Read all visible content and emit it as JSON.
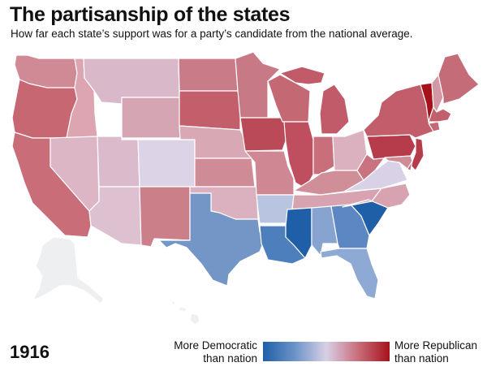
{
  "header": {
    "title": "The partisanship of the states",
    "subtitle": "How far each state’s support was for a party’s candidate from the national average."
  },
  "footer": {
    "year": "1916",
    "legend_left_line1": "More Democratic",
    "legend_left_line2": "than nation",
    "legend_right_line1": "More Republican",
    "legend_right_line2": "than nation"
  },
  "colors": {
    "strong_dem": "#1f5fa8",
    "dem": "#6b93c7",
    "neutral": "#d8d0e6",
    "rep": "#c96e7c",
    "strong_rep": "#a6121c",
    "no_data": "#eeeff1",
    "border": "#ffffff"
  },
  "states": [
    {
      "code": "WA",
      "lean": "rep",
      "fill": "#cf8a95"
    },
    {
      "code": "OR",
      "lean": "rep",
      "fill": "#c66772"
    },
    {
      "code": "CA",
      "lean": "rep",
      "fill": "#c96d78"
    },
    {
      "code": "ID",
      "lean": "rep-slight",
      "fill": "#dca5b1"
    },
    {
      "code": "NV",
      "lean": "rep-slight",
      "fill": "#dcb6c4"
    },
    {
      "code": "MT",
      "lean": "rep-slight",
      "fill": "#d9b9c9"
    },
    {
      "code": "WY",
      "lean": "rep-slight",
      "fill": "#d6a5b3"
    },
    {
      "code": "UT",
      "lean": "rep-slight",
      "fill": "#dbbacb"
    },
    {
      "code": "AZ",
      "lean": "rep-slight",
      "fill": "#ddc1d1"
    },
    {
      "code": "CO",
      "lean": "neutral",
      "fill": "#ddd3e6"
    },
    {
      "code": "NM",
      "lean": "rep",
      "fill": "#cb7f89"
    },
    {
      "code": "ND",
      "lean": "rep",
      "fill": "#c97c88"
    },
    {
      "code": "SD",
      "lean": "rep",
      "fill": "#c35e6b"
    },
    {
      "code": "NE",
      "lean": "rep-slight",
      "fill": "#d8a8b4"
    },
    {
      "code": "KS",
      "lean": "rep",
      "fill": "#cf8b96"
    },
    {
      "code": "OK",
      "lean": "rep-slight",
      "fill": "#dcb1bf"
    },
    {
      "code": "TX",
      "lean": "dem",
      "fill": "#7396c6"
    },
    {
      "code": "MN",
      "lean": "rep",
      "fill": "#c77985"
    },
    {
      "code": "IA",
      "lean": "rep",
      "fill": "#bb4a58"
    },
    {
      "code": "MO",
      "lean": "rep",
      "fill": "#cf8893"
    },
    {
      "code": "AR",
      "lean": "dem-slight",
      "fill": "#b9c4e0"
    },
    {
      "code": "LA",
      "lean": "dem",
      "fill": "#4e7fbd"
    },
    {
      "code": "WI",
      "lean": "rep",
      "fill": "#c46873"
    },
    {
      "code": "IL",
      "lean": "rep",
      "fill": "#bf4f5e"
    },
    {
      "code": "MI",
      "lean": "rep",
      "fill": "#c25b69"
    },
    {
      "code": "IN",
      "lean": "rep",
      "fill": "#c96f7b"
    },
    {
      "code": "OH",
      "lean": "rep-slight",
      "fill": "#dcb1bf"
    },
    {
      "code": "KY",
      "lean": "rep",
      "fill": "#d08e99"
    },
    {
      "code": "TN",
      "lean": "rep-slight",
      "fill": "#d7a3b1"
    },
    {
      "code": "MS",
      "lean": "strong_dem",
      "fill": "#1f5fa8"
    },
    {
      "code": "AL",
      "lean": "dem",
      "fill": "#86a4cf"
    },
    {
      "code": "GA",
      "lean": "dem",
      "fill": "#5d87c2"
    },
    {
      "code": "FL",
      "lean": "dem",
      "fill": "#8eaad4"
    },
    {
      "code": "SC",
      "lean": "strong_dem",
      "fill": "#1f5fa8"
    },
    {
      "code": "NC",
      "lean": "rep-slight",
      "fill": "#d8a3b1"
    },
    {
      "code": "VA",
      "lean": "neutral",
      "fill": "#d9d2e6"
    },
    {
      "code": "WV",
      "lean": "rep",
      "fill": "#c97381"
    },
    {
      "code": "PA",
      "lean": "rep",
      "fill": "#b63b4b"
    },
    {
      "code": "NY",
      "lean": "rep",
      "fill": "#c25e6b"
    },
    {
      "code": "VT",
      "lean": "strong_rep",
      "fill": "#a6121c"
    },
    {
      "code": "NH",
      "lean": "rep-slight",
      "fill": "#d298a4"
    },
    {
      "code": "ME",
      "lean": "rep",
      "fill": "#c46c78"
    },
    {
      "code": "MA",
      "lean": "rep",
      "fill": "#c25f6c"
    },
    {
      "code": "NJ",
      "lean": "rep",
      "fill": "#b63b4b"
    },
    {
      "code": "DE",
      "lean": "rep",
      "fill": "#c36874"
    },
    {
      "code": "MD",
      "lean": "rep",
      "fill": "#cf8c96"
    },
    {
      "code": "CT",
      "lean": "rep",
      "fill": "#c56a75"
    },
    {
      "code": "AK",
      "lean": "none",
      "fill": "#eeeff1"
    },
    {
      "code": "HI",
      "lean": "none",
      "fill": "#eeeff1"
    }
  ]
}
